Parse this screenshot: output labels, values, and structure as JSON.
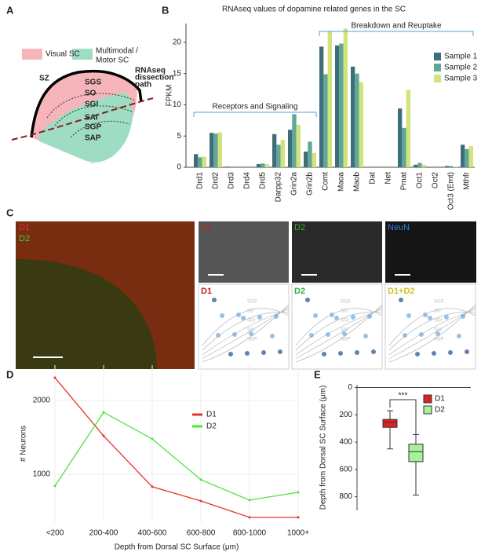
{
  "panels": [
    "A",
    "B",
    "C",
    "D",
    "E"
  ],
  "diagram": {
    "visual": "Visual SC",
    "motor_1": "Multimodal /",
    "motor_2": "Motor SC",
    "layers": [
      "SZ",
      "SGS",
      "SO",
      "SGI",
      "SAI",
      "SGP",
      "SAP"
    ],
    "path_1": "RNAseq",
    "path_2": "dissection",
    "path_3": "path"
  },
  "images": {
    "overview": [
      "D1",
      "D2"
    ],
    "stains": [
      "D1",
      "D2",
      "NeuN"
    ],
    "maps": [
      "D1",
      "D2",
      "D1+D2"
    ],
    "map_layers": [
      "SGS",
      "SO",
      "SGI",
      "SAI",
      "SGP"
    ]
  },
  "chart_data": [
    {
      "type": "bar",
      "title": "RNAseq values of dopamine related genes in the SC",
      "y_label": "FPKM",
      "categories": [
        "Drd1",
        "Drd2",
        "Drd3",
        "Drd4",
        "Drd5",
        "Darpp32",
        "Grin2a",
        "Grin2b",
        "Comt",
        "Maoa",
        "Maob",
        "Dat",
        "Net",
        "Pmat",
        "Oct1",
        "Oct2",
        "Oct3 (Emt)",
        "Mthfr"
      ],
      "series": [
        {
          "name": "Sample 1",
          "color": "#3f6e7b",
          "values": [
            2.1,
            5.5,
            0.1,
            0,
            0.5,
            5.3,
            6.0,
            2.5,
            19.3,
            19.5,
            16.1,
            0,
            0,
            9.4,
            0.4,
            0,
            0.2,
            3.6
          ]
        },
        {
          "name": "Sample 2",
          "color": "#5fa898",
          "values": [
            1.6,
            5.4,
            0,
            0,
            0.6,
            3.6,
            8.5,
            4.1,
            14.9,
            19.8,
            15.0,
            0,
            0,
            6.3,
            0.7,
            0,
            0.2,
            2.9
          ]
        },
        {
          "name": "Sample 3",
          "color": "#d4e27a",
          "values": [
            1.7,
            5.6,
            0,
            0,
            0.5,
            4.4,
            6.8,
            2.3,
            21.7,
            22.2,
            13.6,
            0,
            0,
            12.4,
            0.4,
            0,
            0.1,
            3.4
          ]
        }
      ],
      "annotations": [
        "Receptors and Signaling",
        "Breakdown and Reuptake"
      ],
      "ylim": [
        0,
        23
      ],
      "yticks": [
        0,
        5,
        10,
        15,
        20
      ],
      "legend": "upper right"
    },
    {
      "type": "line",
      "x_label": "Depth from Dorsal SC Surface (μm)",
      "y_label": "# Neurons",
      "categories": [
        "<200",
        "200-400",
        "400-600",
        "600-800",
        "800-1000",
        "1000+"
      ],
      "series": [
        {
          "name": "D1",
          "color": "#e8322a",
          "values": [
            2309,
            1521,
            830,
            638,
            415,
            415
          ]
        },
        {
          "name": "D2",
          "color": "#4fe33c",
          "values": [
            840,
            1840,
            1479,
            926,
            649,
            755
          ]
        }
      ],
      "ylim": [
        350,
        2480
      ],
      "yticks": [
        1000,
        2000
      ],
      "legend": "center right"
    },
    {
      "type": "box",
      "y_label": "Depth from Dorsal SC Surface (μm)",
      "series": [
        {
          "name": "D1",
          "color": "#e02020",
          "min": 170,
          "q1": 234,
          "median": 255,
          "q3": 292,
          "max": 450
        },
        {
          "name": "D2",
          "color": "#a8f09a",
          "min": 345,
          "q1": 415,
          "median": 470,
          "q3": 543,
          "max": 788
        }
      ],
      "annotations": [
        "***"
      ],
      "ylim": [
        900,
        -20
      ],
      "yticks": [
        0,
        200,
        400,
        600,
        800
      ],
      "legend": "upper right"
    }
  ]
}
